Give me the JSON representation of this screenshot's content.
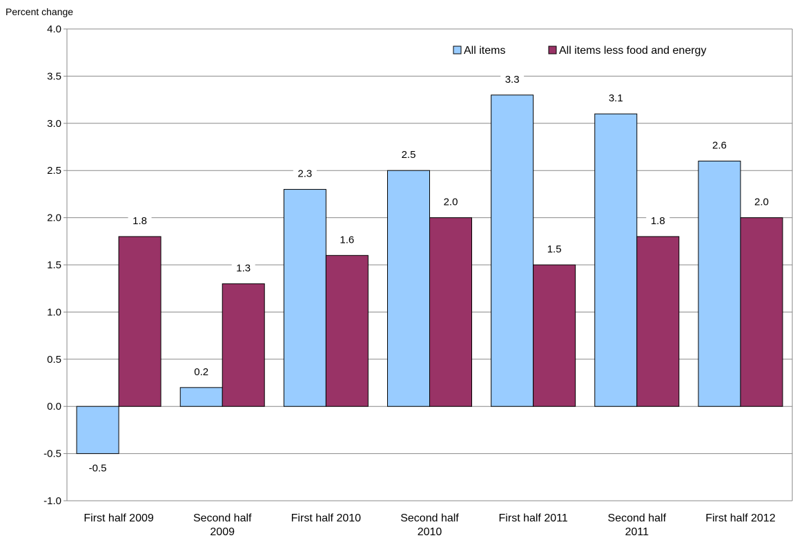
{
  "chart_data": {
    "type": "bar",
    "ylabel": "Percent change",
    "ylim": [
      -1.0,
      4.0
    ],
    "y_ticks": [
      "-1.0",
      "-0.5",
      "0.0",
      "0.5",
      "1.0",
      "1.5",
      "2.0",
      "2.5",
      "3.0",
      "3.5",
      "4.0"
    ],
    "grid": true,
    "legend_position": "top-right",
    "categories": [
      [
        "First half 2009"
      ],
      [
        "Second half",
        "2009"
      ],
      [
        "First half 2010"
      ],
      [
        "Second half",
        "2010"
      ],
      [
        "First half 2011"
      ],
      [
        "Second half",
        "2011"
      ],
      [
        "First half 2012"
      ]
    ],
    "series": [
      {
        "name": "All items",
        "color": "#99ccff",
        "values": [
          -0.5,
          0.2,
          2.3,
          2.5,
          3.3,
          3.1,
          2.6
        ],
        "labels": [
          "-0.5",
          "0.2",
          "2.3",
          "2.5",
          "3.3",
          "3.1",
          "2.6"
        ]
      },
      {
        "name": "All items less food and energy",
        "color": "#993366",
        "values": [
          1.8,
          1.3,
          1.6,
          2.0,
          1.5,
          1.8,
          2.0
        ],
        "labels": [
          "1.8",
          "1.3",
          "1.6",
          "2.0",
          "1.5",
          "1.8",
          "2.0"
        ]
      }
    ]
  }
}
